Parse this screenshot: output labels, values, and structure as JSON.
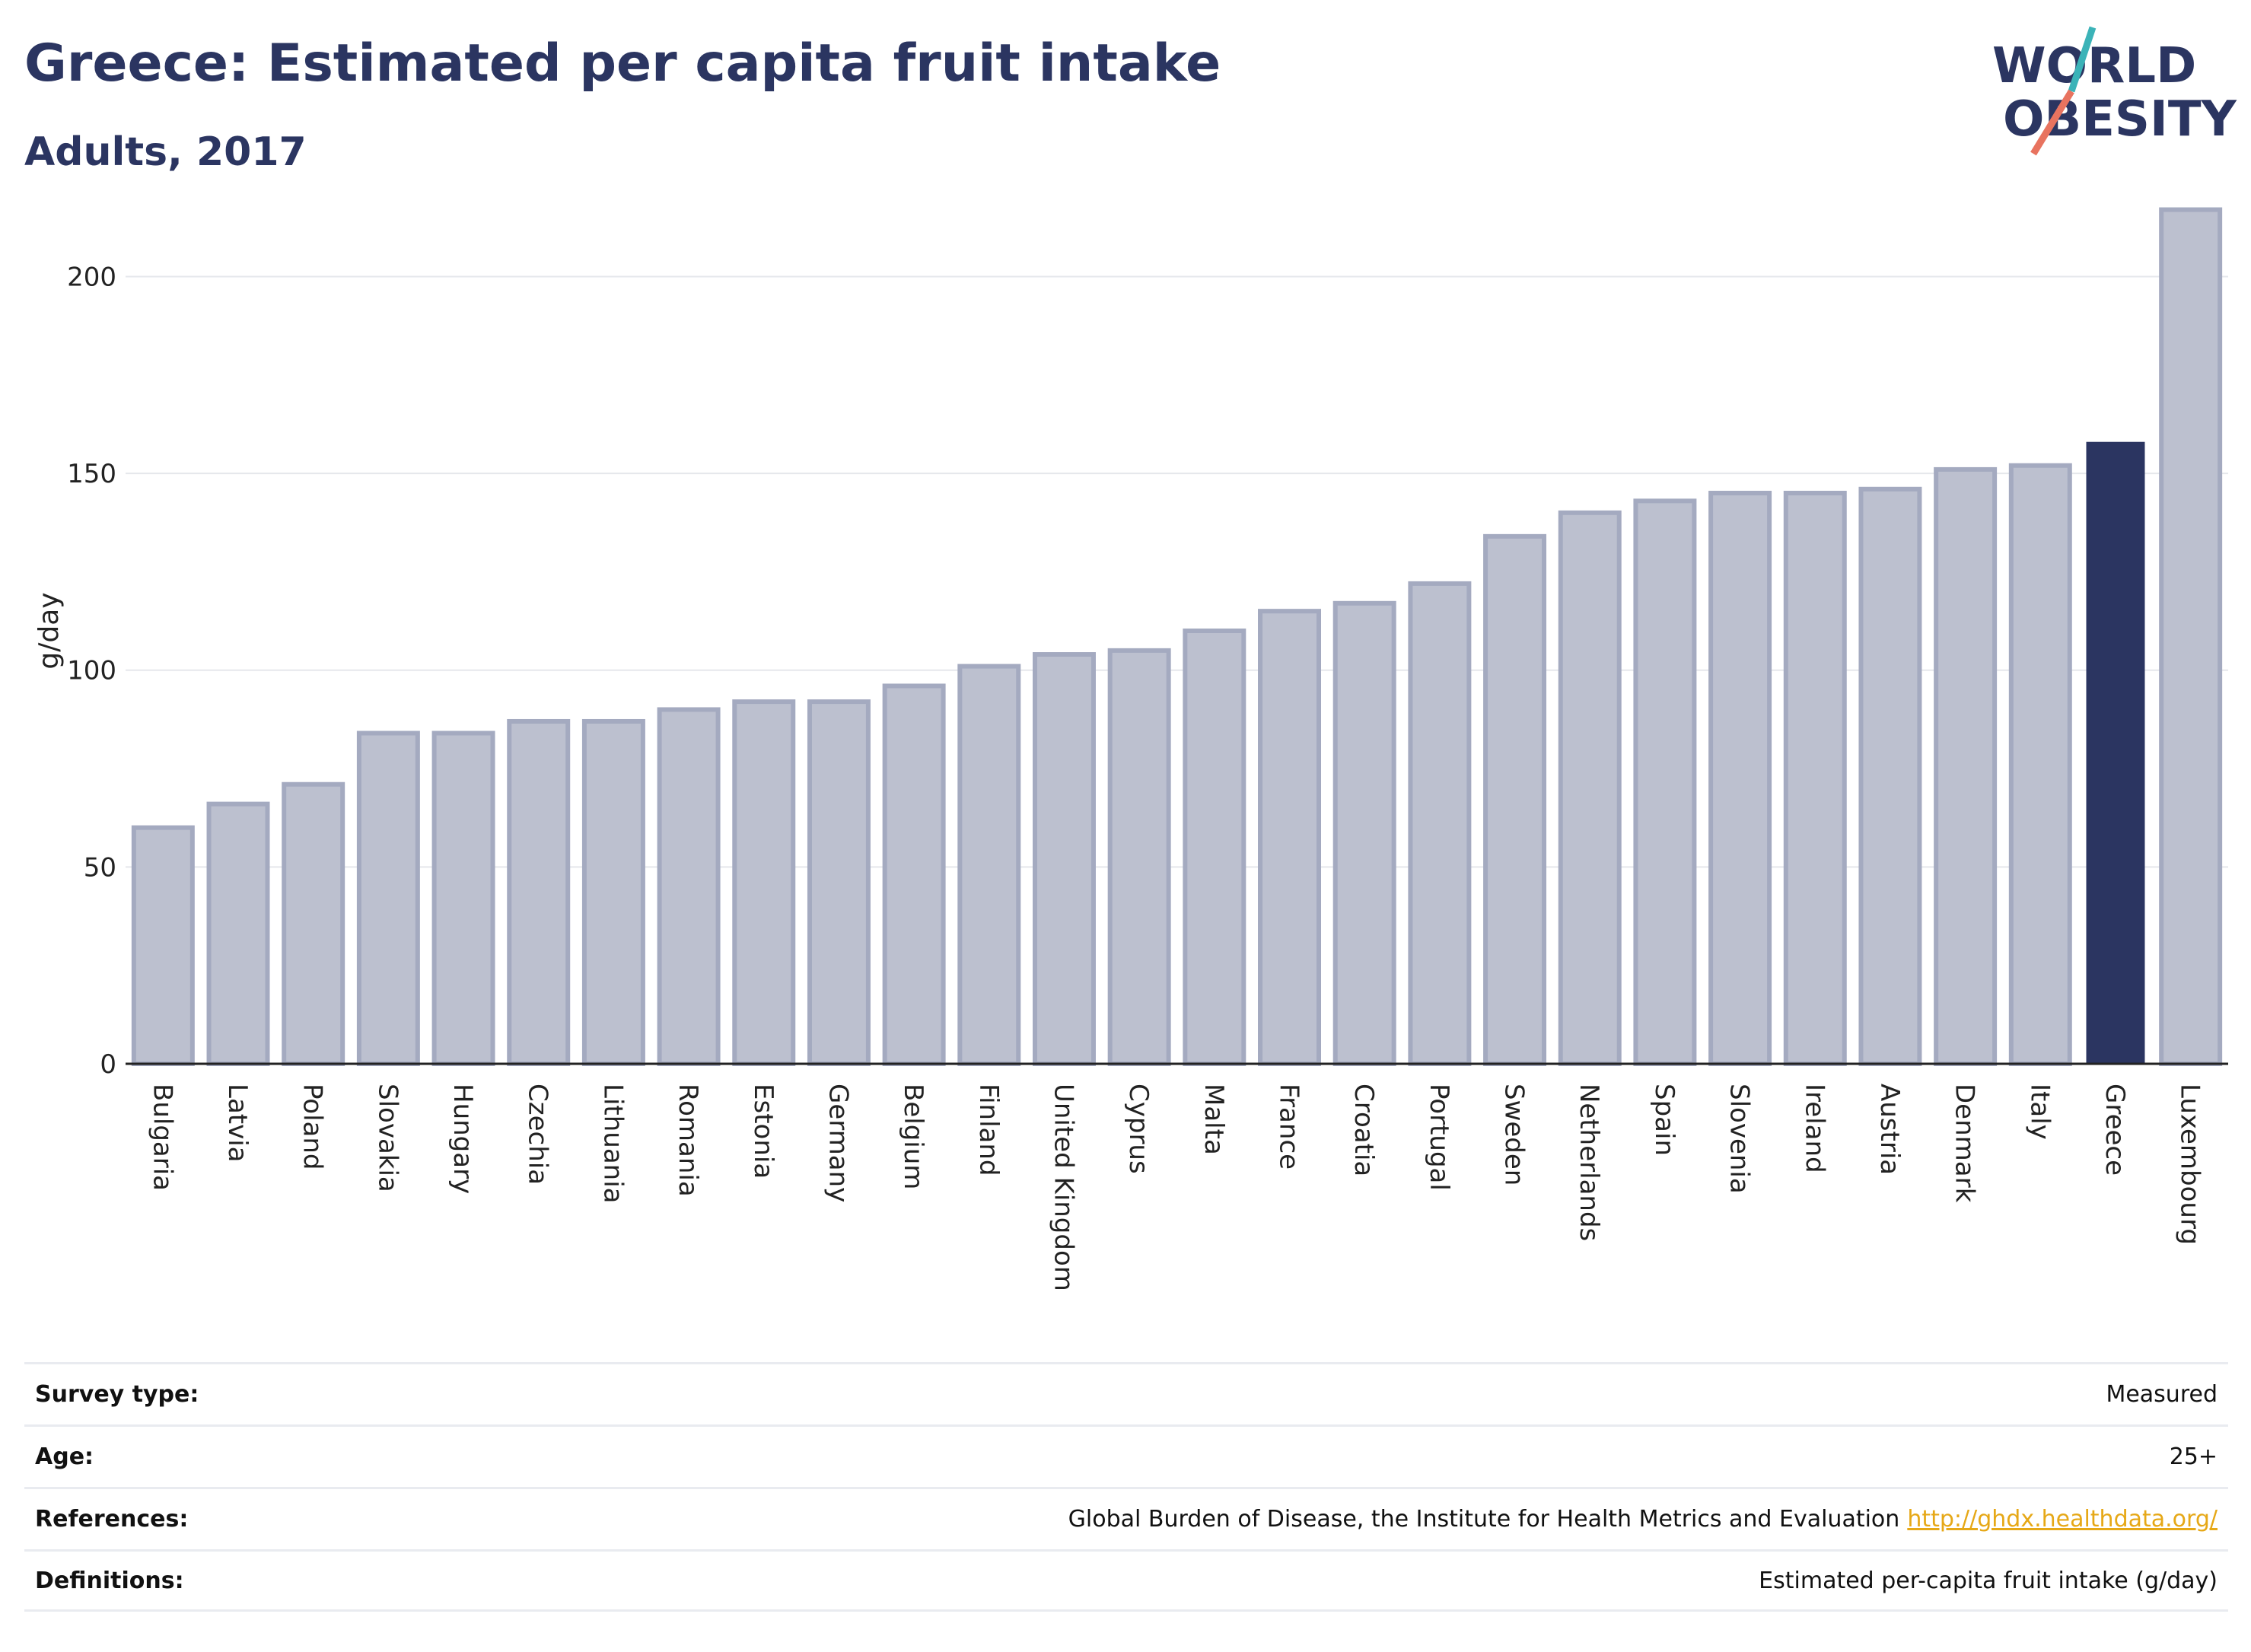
{
  "header": {
    "title": "Greece: Estimated per capita fruit intake",
    "subtitle": "Adults, 2017"
  },
  "logo": {
    "line1": "WORLD",
    "line2": "OBESITY",
    "accent_teal": "#3bb3b8",
    "accent_coral": "#e8735f"
  },
  "colors": {
    "bar": "#bcc0cf",
    "bar_border": "#a4aac0",
    "highlight": "#2b3561",
    "grid": "#e5e7ec",
    "text": "#2b3561"
  },
  "chart_data": {
    "type": "bar",
    "ylabel": "g/day",
    "ylim": [
      0,
      220
    ],
    "yticks": [
      0,
      50,
      100,
      150,
      200
    ],
    "highlight": "Greece",
    "categories": [
      "Bulgaria",
      "Latvia",
      "Poland",
      "Slovakia",
      "Hungary",
      "Czechia",
      "Lithuania",
      "Romania",
      "Estonia",
      "Germany",
      "Belgium",
      "Finland",
      "United Kingdom",
      "Cyprus",
      "Malta",
      "France",
      "Croatia",
      "Portugal",
      "Sweden",
      "Netherlands",
      "Spain",
      "Slovenia",
      "Ireland",
      "Austria",
      "Denmark",
      "Italy",
      "Greece",
      "Luxembourg"
    ],
    "values": [
      60,
      66,
      71,
      84,
      84,
      87,
      87,
      90,
      92,
      92,
      96,
      101,
      104,
      105,
      110,
      115,
      117,
      122,
      134,
      140,
      143,
      145,
      145,
      146,
      151,
      152,
      158,
      217
    ]
  },
  "meta": [
    {
      "label": "Survey type:",
      "value": "Measured"
    },
    {
      "label": "Age:",
      "value": "25+"
    },
    {
      "label": "References:",
      "value": "Global Burden of Disease, the Institute for Health Metrics and Evaluation",
      "link": "http://ghdx.healthdata.org/"
    },
    {
      "label": "Definitions:",
      "value": "Estimated per-capita fruit intake (g/day)"
    }
  ]
}
